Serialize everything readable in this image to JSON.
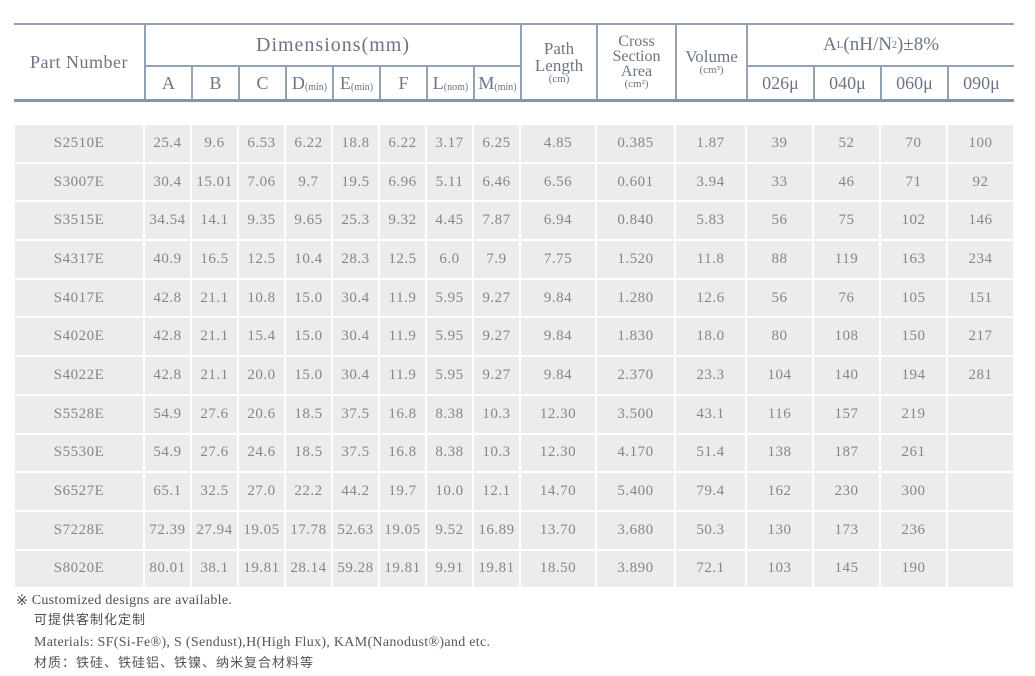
{
  "table": {
    "header": {
      "part_number": "Part Number",
      "dimensions_label": "Dimensions(mm)",
      "dim_cols": [
        {
          "letter": "A",
          "qual": ""
        },
        {
          "letter": "B",
          "qual": ""
        },
        {
          "letter": "C",
          "qual": ""
        },
        {
          "letter": "D",
          "qual": "(min)"
        },
        {
          "letter": "E",
          "qual": "(min)"
        },
        {
          "letter": "F",
          "qual": ""
        },
        {
          "letter": "L",
          "qual": "(nom)"
        },
        {
          "letter": "M",
          "qual": "(min)"
        }
      ],
      "path_length": {
        "line1": "Path",
        "line2": "Length",
        "unit": "(cm)"
      },
      "cross_section": {
        "line1": "Cross",
        "line2": "Section",
        "line3": "Area",
        "unit": "(cm²)"
      },
      "volume": {
        "line1": "Volume",
        "unit": "(cm³)"
      },
      "al": {
        "main": "A",
        "sub": "L",
        "mid": "(nH/N",
        "sup": "2",
        "tail": ")±8%"
      },
      "al_cols": [
        "026μ",
        "040μ",
        "060μ",
        "090μ"
      ]
    },
    "rows": [
      {
        "part": "S2510E",
        "values": [
          "25.4",
          "9.6",
          "6.53",
          "6.22",
          "18.8",
          "6.22",
          "3.17",
          "6.25",
          "4.85",
          "0.385",
          "1.87",
          "39",
          "52",
          "70",
          "100"
        ]
      },
      {
        "part": "S3007E",
        "values": [
          "30.4",
          "15.01",
          "7.06",
          "9.7",
          "19.5",
          "6.96",
          "5.11",
          "6.46",
          "6.56",
          "0.601",
          "3.94",
          "33",
          "46",
          "71",
          "92"
        ]
      },
      {
        "part": "S3515E",
        "values": [
          "34.54",
          "14.1",
          "9.35",
          "9.65",
          "25.3",
          "9.32",
          "4.45",
          "7.87",
          "6.94",
          "0.840",
          "5.83",
          "56",
          "75",
          "102",
          "146"
        ]
      },
      {
        "part": "S4317E",
        "values": [
          "40.9",
          "16.5",
          "12.5",
          "10.4",
          "28.3",
          "12.5",
          "6.0",
          "7.9",
          "7.75",
          "1.520",
          "11.8",
          "88",
          "119",
          "163",
          "234"
        ]
      },
      {
        "part": "S4017E",
        "values": [
          "42.8",
          "21.1",
          "10.8",
          "15.0",
          "30.4",
          "11.9",
          "5.95",
          "9.27",
          "9.84",
          "1.280",
          "12.6",
          "56",
          "76",
          "105",
          "151"
        ]
      },
      {
        "part": "S4020E",
        "values": [
          "42.8",
          "21.1",
          "15.4",
          "15.0",
          "30.4",
          "11.9",
          "5.95",
          "9.27",
          "9.84",
          "1.830",
          "18.0",
          "80",
          "108",
          "150",
          "217"
        ]
      },
      {
        "part": "S4022E",
        "values": [
          "42.8",
          "21.1",
          "20.0",
          "15.0",
          "30.4",
          "11.9",
          "5.95",
          "9.27",
          "9.84",
          "2.370",
          "23.3",
          "104",
          "140",
          "194",
          "281"
        ]
      },
      {
        "part": "S5528E",
        "values": [
          "54.9",
          "27.6",
          "20.6",
          "18.5",
          "37.5",
          "16.8",
          "8.38",
          "10.3",
          "12.30",
          "3.500",
          "43.1",
          "116",
          "157",
          "219",
          ""
        ]
      },
      {
        "part": "S5530E",
        "values": [
          "54.9",
          "27.6",
          "24.6",
          "18.5",
          "37.5",
          "16.8",
          "8.38",
          "10.3",
          "12.30",
          "4.170",
          "51.4",
          "138",
          "187",
          "261",
          ""
        ]
      },
      {
        "part": "S6527E",
        "values": [
          "65.1",
          "32.5",
          "27.0",
          "22.2",
          "44.2",
          "19.7",
          "10.0",
          "12.1",
          "14.70",
          "5.400",
          "79.4",
          "162",
          "230",
          "300",
          ""
        ]
      },
      {
        "part": "S7228E",
        "values": [
          "72.39",
          "27.94",
          "19.05",
          "17.78",
          "52.63",
          "19.05",
          "9.52",
          "16.89",
          "13.70",
          "3.680",
          "50.3",
          "130",
          "173",
          "236",
          ""
        ]
      },
      {
        "part": "S8020E",
        "values": [
          "80.01",
          "38.1",
          "19.81",
          "28.14",
          "59.28",
          "19.81",
          "9.91",
          "19.81",
          "18.50",
          "3.890",
          "72.1",
          "103",
          "145",
          "190",
          ""
        ]
      }
    ]
  },
  "footer": {
    "ref_mark": "※",
    "note_en1": "Customized designs are available.",
    "note_cn1": "可提供客制化定制",
    "note_en2": "Materials: SF(Si-Fe®), S (Sendust),H(High Flux), KAM(Nanodust®)and etc.",
    "note_cn2": "材质：铁硅、铁硅铝、铁镍、纳米复合材料等"
  },
  "colors": {
    "border": "#94a2b6",
    "border_heavy": "#8394ac",
    "header_text": "#6b7585",
    "cell_bg": "#ececec",
    "cell_text": "#868686",
    "note_text": "#4e4e4e"
  }
}
